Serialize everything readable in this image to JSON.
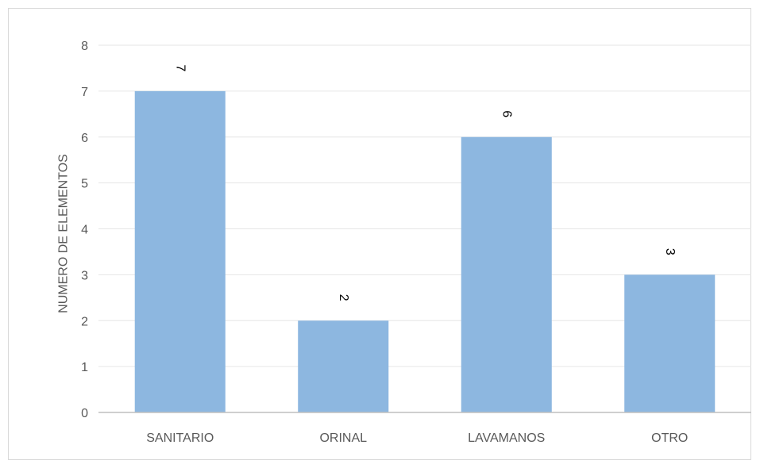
{
  "chart_data": {
    "type": "bar",
    "title": "",
    "xlabel": "",
    "ylabel": "NUMERO DE ELEMENTOS",
    "categories": [
      "SANITARIO",
      "ORINAL",
      "LAVAMANOS",
      "OTRO"
    ],
    "values": [
      7,
      2,
      6,
      3
    ],
    "data_labels": [
      "7",
      "2",
      "6",
      "3"
    ],
    "ylim": [
      0,
      8
    ],
    "yticks": [
      "0",
      "1",
      "2",
      "3",
      "4",
      "5",
      "6",
      "7",
      "8"
    ],
    "grid": true,
    "legend": "none",
    "bar_color": "#8db7e0",
    "gridline_color": "#e6e6e6",
    "axis_color": "#bfbfbf"
  }
}
